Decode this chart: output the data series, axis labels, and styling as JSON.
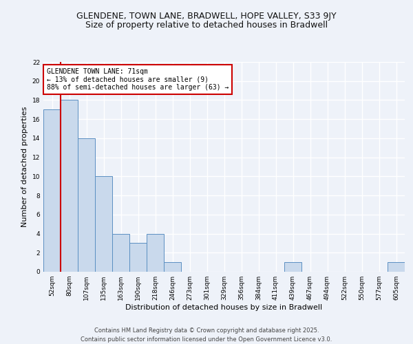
{
  "title1": "GLENDENE, TOWN LANE, BRADWELL, HOPE VALLEY, S33 9JY",
  "title2": "Size of property relative to detached houses in Bradwell",
  "xlabel": "Distribution of detached houses by size in Bradwell",
  "ylabel": "Number of detached properties",
  "bin_labels": [
    "52sqm",
    "80sqm",
    "107sqm",
    "135sqm",
    "163sqm",
    "190sqm",
    "218sqm",
    "246sqm",
    "273sqm",
    "301sqm",
    "329sqm",
    "356sqm",
    "384sqm",
    "411sqm",
    "439sqm",
    "467sqm",
    "494sqm",
    "522sqm",
    "550sqm",
    "577sqm",
    "605sqm"
  ],
  "bar_values": [
    17,
    18,
    14,
    10,
    4,
    3,
    4,
    1,
    0,
    0,
    0,
    0,
    0,
    0,
    1,
    0,
    0,
    0,
    0,
    0,
    1
  ],
  "bar_color": "#c9d9ec",
  "bar_edgecolor": "#5a8fc2",
  "vline_color": "#cc0000",
  "annotation_title": "GLENDENE TOWN LANE: 71sqm",
  "annotation_line1": "← 13% of detached houses are smaller (9)",
  "annotation_line2": "88% of semi-detached houses are larger (63) →",
  "annotation_box_color": "#ffffff",
  "annotation_box_edgecolor": "#cc0000",
  "ylim": [
    0,
    22
  ],
  "yticks": [
    0,
    2,
    4,
    6,
    8,
    10,
    12,
    14,
    16,
    18,
    20,
    22
  ],
  "background_color": "#eef2f9",
  "grid_color": "#ffffff",
  "footer1": "Contains HM Land Registry data © Crown copyright and database right 2025.",
  "footer2": "Contains public sector information licensed under the Open Government Licence v3.0.",
  "title_fontsize": 9,
  "subtitle_fontsize": 9,
  "axis_label_fontsize": 8,
  "tick_fontsize": 6.5,
  "annotation_fontsize": 7,
  "footer_fontsize": 6
}
